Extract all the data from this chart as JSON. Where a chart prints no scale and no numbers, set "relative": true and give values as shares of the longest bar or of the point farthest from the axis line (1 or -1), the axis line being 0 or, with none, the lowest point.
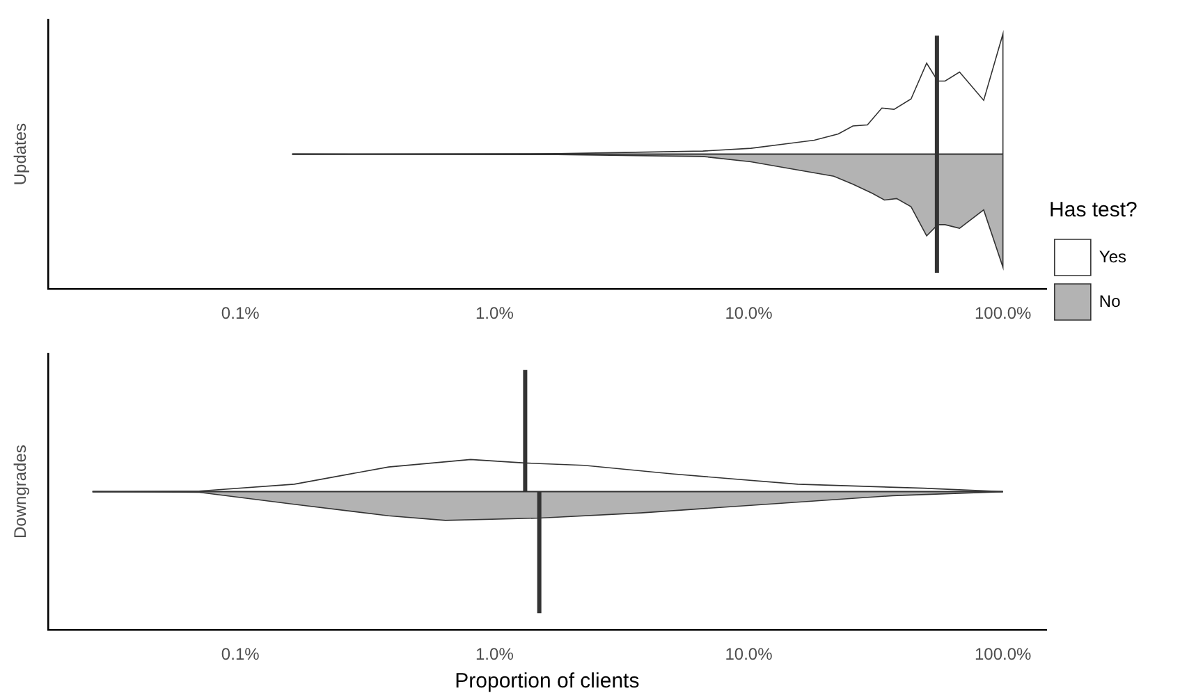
{
  "chart_data": [
    {
      "type": "area",
      "ylabel": "Updates",
      "relative": true,
      "legend": "right",
      "legend_title": "Has test?",
      "grid": false,
      "log": "x",
      "xlim": [
        0.000175,
        1.48
      ],
      "xticks": [
        {
          "value": 0.001,
          "label": "0.1%"
        },
        {
          "value": 0.01,
          "label": "1.0%"
        },
        {
          "value": 0.1,
          "label": "10.0%"
        },
        {
          "value": 1,
          "label": "100.0%"
        }
      ],
      "series": [
        {
          "name": "Yes",
          "color": "#ffffff",
          "x": [
            0.0016,
            0.0177,
            0.066,
            0.102,
            0.145,
            0.181,
            0.225,
            0.257,
            0.293,
            0.334,
            0.373,
            0.435,
            0.501,
            0.554,
            0.592,
            0.675,
            0.84,
            1.0,
            1.0
          ],
          "values": [
            0,
            0.004,
            0.026,
            0.049,
            0.09,
            0.116,
            0.168,
            0.235,
            0.243,
            0.384,
            0.373,
            0.459,
            0.757,
            0.608,
            0.608,
            0.683,
            0.448,
            1.0,
            0
          ]
        },
        {
          "name": "No",
          "color": "#b3b3b3",
          "x": [
            0.0016,
            0.0177,
            0.066,
            0.102,
            0.145,
            0.216,
            0.257,
            0.306,
            0.342,
            0.382,
            0.435,
            0.501,
            0.554,
            0.592,
            0.675,
            0.84,
            1.0,
            1.0
          ],
          "values": [
            0,
            -0.004,
            -0.019,
            -0.063,
            -0.119,
            -0.183,
            -0.25,
            -0.325,
            -0.381,
            -0.369,
            -0.437,
            -0.679,
            -0.586,
            -0.586,
            -0.616,
            -0.463,
            -0.94,
            0
          ]
        }
      ],
      "ref_lines": [
        {
          "axis": "x",
          "value": 0.55,
          "color": "#333333"
        }
      ]
    },
    {
      "type": "area",
      "ylabel": "Downgrades",
      "xlabel": "Proportion of clients",
      "relative": true,
      "legend": false,
      "tick_labels": "x",
      "grid": false,
      "xlim": [
        0.000175,
        1.48
      ],
      "log": "x",
      "xticks": [
        {
          "value": 0.001,
          "label": "0.1%"
        },
        {
          "value": 0.01,
          "label": "1.0%"
        },
        {
          "value": 0.1,
          "label": "10.0%"
        },
        {
          "value": 1,
          "label": "100.0%"
        }
      ],
      "series": [
        {
          "color": "#ffffff",
          "x": [
            0.000262,
            0.00069,
            0.00163,
            0.00383,
            0.00805,
            0.01315,
            0.0225,
            0.0499,
            0.156,
            0.489,
            1.0
          ],
          "values": [
            0,
            0.018,
            0.232,
            0.768,
            1.0,
            0.893,
            0.821,
            0.554,
            0.232,
            0.107,
            0
          ]
        },
        {
          "color": "#b3b3b3",
          "x": [
            0.000262,
            0.00069,
            0.00163,
            0.00383,
            0.00641,
            0.0151,
            0.0376,
            0.117,
            0.368,
            1.0
          ],
          "values": [
            0,
            -0.018,
            -0.393,
            -0.75,
            -0.893,
            -0.821,
            -0.661,
            -0.393,
            -0.125,
            0
          ]
        }
      ],
      "ref_lines": [
        {
          "axis": "x",
          "value": 0.0132,
          "color": "#333333"
        },
        {
          "axis": "x",
          "value": 0.015,
          "color": "#333333"
        }
      ]
    }
  ]
}
